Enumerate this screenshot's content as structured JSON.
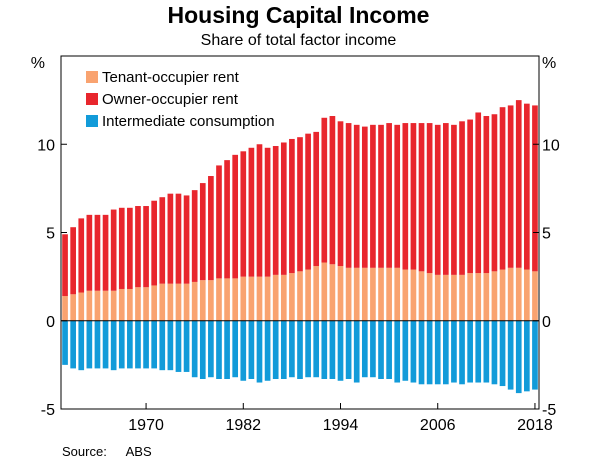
{
  "title": "Housing Capital Income",
  "subtitle": "Share of total factor income",
  "source_label": "Source:",
  "source_value": "ABS",
  "colors": {
    "tenant": "#F9A370",
    "owner": "#E8262D",
    "intermediate": "#129BD9"
  },
  "chart_data": {
    "type": "bar",
    "stacked": true,
    "title": "Housing Capital Income",
    "subtitle": "Share of total factor income",
    "y_unit_left": "%",
    "y_unit_right": "%",
    "ylim": [
      -5,
      15
    ],
    "yticks": [
      -5,
      0,
      5,
      10
    ],
    "xticks": [
      "1970",
      "1982",
      "1994",
      "2006",
      "2018"
    ],
    "xrange": [
      1959.5,
      2018.5
    ],
    "grid": false,
    "legend_position": "top-left",
    "x": [
      1960,
      1961,
      1962,
      1963,
      1964,
      1965,
      1966,
      1967,
      1968,
      1969,
      1970,
      1971,
      1972,
      1973,
      1974,
      1975,
      1976,
      1977,
      1978,
      1979,
      1980,
      1981,
      1982,
      1983,
      1984,
      1985,
      1986,
      1987,
      1988,
      1989,
      1990,
      1991,
      1992,
      1993,
      1994,
      1995,
      1996,
      1997,
      1998,
      1999,
      2000,
      2001,
      2002,
      2003,
      2004,
      2005,
      2006,
      2007,
      2008,
      2009,
      2010,
      2011,
      2012,
      2013,
      2014,
      2015,
      2016,
      2017,
      2018
    ],
    "series": [
      {
        "name": "Tenant-occupier rent",
        "values": [
          1.4,
          1.5,
          1.6,
          1.7,
          1.7,
          1.7,
          1.7,
          1.8,
          1.8,
          1.9,
          1.9,
          2.0,
          2.1,
          2.1,
          2.1,
          2.1,
          2.2,
          2.3,
          2.3,
          2.4,
          2.4,
          2.4,
          2.5,
          2.5,
          2.5,
          2.5,
          2.6,
          2.6,
          2.7,
          2.8,
          2.9,
          3.1,
          3.3,
          3.2,
          3.1,
          3.0,
          3.0,
          3.0,
          3.0,
          3.0,
          3.0,
          3.0,
          2.9,
          2.9,
          2.8,
          2.7,
          2.6,
          2.6,
          2.6,
          2.6,
          2.7,
          2.7,
          2.7,
          2.8,
          2.9,
          3.0,
          3.0,
          2.9,
          2.8
        ]
      },
      {
        "name": "Owner-occupier rent",
        "values": [
          3.5,
          3.8,
          4.2,
          4.3,
          4.3,
          4.3,
          4.6,
          4.6,
          4.6,
          4.6,
          4.6,
          4.8,
          4.9,
          5.1,
          5.1,
          5.0,
          5.2,
          5.5,
          5.9,
          6.4,
          6.7,
          7.0,
          7.1,
          7.3,
          7.5,
          7.3,
          7.3,
          7.5,
          7.6,
          7.6,
          7.7,
          7.6,
          8.2,
          8.4,
          8.2,
          8.2,
          8.1,
          8.0,
          8.1,
          8.1,
          8.2,
          8.1,
          8.3,
          8.3,
          8.4,
          8.5,
          8.5,
          8.6,
          8.5,
          8.7,
          8.7,
          9.1,
          8.9,
          8.9,
          9.2,
          9.2,
          9.5,
          9.4,
          9.4
        ]
      },
      {
        "name": "Intermediate consumption",
        "values": [
          -2.5,
          -2.7,
          -2.8,
          -2.7,
          -2.7,
          -2.7,
          -2.8,
          -2.7,
          -2.7,
          -2.7,
          -2.7,
          -2.7,
          -2.8,
          -2.8,
          -2.9,
          -2.9,
          -3.2,
          -3.3,
          -3.2,
          -3.3,
          -3.3,
          -3.2,
          -3.4,
          -3.3,
          -3.5,
          -3.4,
          -3.3,
          -3.3,
          -3.2,
          -3.3,
          -3.2,
          -3.2,
          -3.3,
          -3.3,
          -3.4,
          -3.3,
          -3.5,
          -3.2,
          -3.2,
          -3.3,
          -3.3,
          -3.5,
          -3.4,
          -3.5,
          -3.6,
          -3.6,
          -3.6,
          -3.6,
          -3.5,
          -3.6,
          -3.5,
          -3.5,
          -3.5,
          -3.6,
          -3.7,
          -3.9,
          -4.1,
          -4.0,
          -3.9
        ]
      }
    ]
  }
}
